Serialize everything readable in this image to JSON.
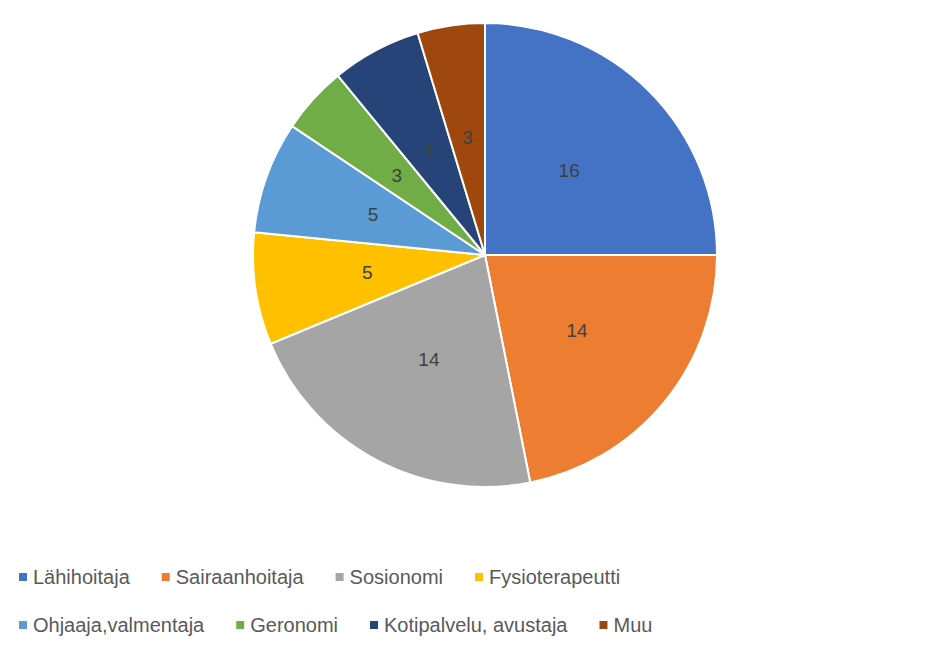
{
  "chart_data": {
    "type": "pie",
    "categories": [
      "Lähihoitaja",
      "Sairaanhoitaja",
      "Sosionomi",
      "Fysioterapeutti",
      "Ohjaaja,valmentaja",
      "Geronomi",
      "Kotipalvelu, avustaja",
      "Muu"
    ],
    "values": [
      16,
      14,
      14,
      5,
      5,
      3,
      4,
      3
    ],
    "colors": [
      "#4472c4",
      "#ed7d31",
      "#a5a5a5",
      "#ffc000",
      "#5b9bd5",
      "#70ad47",
      "#264478",
      "#9e480e"
    ],
    "data_labels": true,
    "legend": "bottom"
  }
}
